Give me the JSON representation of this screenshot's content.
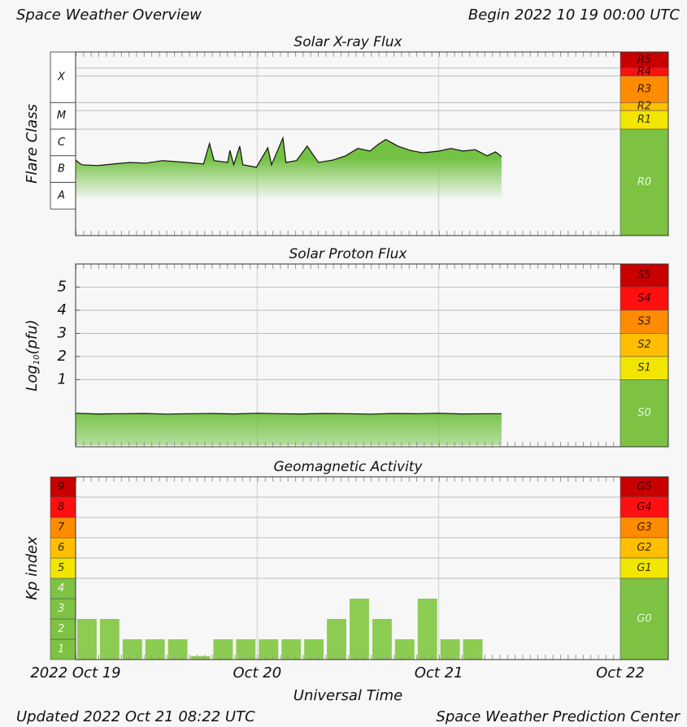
{
  "header": {
    "title": "Space Weather Overview",
    "begin": "Begin 2022 10 19 00:00 UTC"
  },
  "footer": {
    "updated": "Updated 2022 Oct 21 08:22 UTC",
    "source": "Space Weather Prediction Center"
  },
  "chart_data": [
    {
      "type": "line",
      "title": "Solar X-ray Flux",
      "ylabel": [
        "Flare Class"
      ],
      "ylog": true,
      "ylim": [
        1e-09,
        0.008
      ],
      "xlim": [
        0,
        72
      ],
      "xticks": [
        0,
        24,
        48,
        72
      ],
      "x": [
        0,
        0.8,
        2.9,
        5.0,
        7.2,
        9.3,
        11.5,
        14.7,
        16.9,
        17.7,
        18.3,
        20.1,
        20.4,
        20.9,
        21.7,
        22.1,
        23.9,
        25.4,
        25.9,
        27.4,
        27.8,
        29.2,
        30.6,
        32.1,
        34.0,
        35.7,
        37.3,
        38.9,
        40.0,
        41.0,
        42.6,
        44.2,
        45.9,
        48.0,
        49.6,
        51.2,
        52.8,
        54.4,
        55.5,
        56.3
      ],
      "values": [
        6.9e-07,
        4.6e-07,
        4.3e-07,
        4.9e-07,
        5.6e-07,
        5.3e-07,
        6.6e-07,
        5.6e-07,
        4.9e-07,
        2.9e-06,
        6.6e-07,
        5.6e-07,
        1.6e-06,
        4.6e-07,
        2.3e-06,
        4.6e-07,
        3.7e-07,
        2e-06,
        4.6e-07,
        4.7e-06,
        5.6e-07,
        6.6e-07,
        2.3e-06,
        5.6e-07,
        6.9e-07,
        1e-06,
        1.9e-06,
        1.5e-06,
        2.7e-06,
        4.1e-06,
        2.3e-06,
        1.6e-06,
        1.3e-06,
        1.5e-06,
        1.9e-06,
        1.5e-06,
        1.7e-06,
        1e-06,
        1.4e-06,
        9.3e-07
      ],
      "color": "#111111",
      "fill_color": "#6cbf3a",
      "classes": [
        {
          "label": "X",
          "from": 0.0001,
          "to": 0.008
        },
        {
          "label": "M",
          "from": 1e-05,
          "to": 0.0001
        },
        {
          "label": "C",
          "from": 1e-06,
          "to": 1e-05
        },
        {
          "label": "B",
          "from": 1e-07,
          "to": 1e-06
        },
        {
          "label": "A",
          "from": 1e-08,
          "to": 1e-07
        }
      ],
      "scale": [
        {
          "label": "R5",
          "from": 0.002,
          "to": 0.008,
          "color": "#c80000",
          "text_color": "#3a0000"
        },
        {
          "label": "R4",
          "from": 0.001,
          "to": 0.002,
          "color": "#ff1010",
          "text_color": "#3a0000"
        },
        {
          "label": "R3",
          "from": 0.0001,
          "to": 0.001,
          "color": "#ff8c00",
          "text_color": "#3a1a00"
        },
        {
          "label": "R2",
          "from": 5e-05,
          "to": 0.0001,
          "color": "#ffbf00",
          "text_color": "#3a2a00"
        },
        {
          "label": "R1",
          "from": 1e-05,
          "to": 5e-05,
          "color": "#f2e600",
          "text_color": "#333300"
        },
        {
          "label": "R0",
          "from": 1e-09,
          "to": 1e-05,
          "color": "#7dc242",
          "text_color": "#e6f5dc"
        }
      ]
    },
    {
      "type": "line",
      "title": "Solar Proton Flux",
      "ylabel": [
        "Log",
        "10",
        "(pfu)"
      ],
      "ylim": [
        -1.9,
        6
      ],
      "yticks": [
        1,
        2,
        3,
        4,
        5
      ],
      "xlim": [
        0,
        72
      ],
      "xticks": [
        0,
        24,
        48,
        72
      ],
      "x": [
        0,
        3,
        6,
        9,
        12,
        15,
        18,
        21,
        24,
        27,
        30,
        33,
        36,
        39,
        42,
        45,
        48,
        51,
        54,
        56.3
      ],
      "values": [
        -0.45,
        -0.48,
        -0.47,
        -0.46,
        -0.49,
        -0.47,
        -0.46,
        -0.48,
        -0.45,
        -0.47,
        -0.48,
        -0.46,
        -0.47,
        -0.49,
        -0.46,
        -0.47,
        -0.45,
        -0.48,
        -0.47,
        -0.47
      ],
      "color": "#111111",
      "fill_color": "#6cbf3a",
      "scale": [
        {
          "label": "S5",
          "from": 5,
          "to": 6,
          "color": "#c80000",
          "text_color": "#3a0000"
        },
        {
          "label": "S4",
          "from": 4,
          "to": 5,
          "color": "#ff1010",
          "text_color": "#3a0000"
        },
        {
          "label": "S3",
          "from": 3,
          "to": 4,
          "color": "#ff8c00",
          "text_color": "#3a1a00"
        },
        {
          "label": "S2",
          "from": 2,
          "to": 3,
          "color": "#ffbf00",
          "text_color": "#3a2a00"
        },
        {
          "label": "S1",
          "from": 1,
          "to": 2,
          "color": "#f2e600",
          "text_color": "#333300"
        },
        {
          "label": "S0",
          "from": -1.9,
          "to": 1,
          "color": "#7dc242",
          "text_color": "#e6f5dc"
        }
      ]
    },
    {
      "type": "bar",
      "title": "Geomagnetic Activity",
      "ylabel": [
        "Kp index"
      ],
      "xlabel": "Universal Time",
      "ylim": [
        0,
        9
      ],
      "xlim": [
        0,
        72
      ],
      "xticks": [
        {
          "value": 0,
          "label": "2022 Oct 19"
        },
        {
          "value": 24,
          "label": "Oct 20"
        },
        {
          "value": 48,
          "label": "Oct 21"
        },
        {
          "value": 72,
          "label": "Oct 22"
        }
      ],
      "x": [
        0,
        3,
        6,
        9,
        12,
        15,
        18,
        21,
        24,
        27,
        30,
        33,
        36,
        39,
        42,
        45,
        48,
        51
      ],
      "values": [
        2,
        2,
        1,
        1,
        1,
        0.17,
        1,
        1,
        1,
        1,
        1,
        2,
        3,
        2,
        1,
        3,
        1,
        1
      ],
      "color": "#8ccc52",
      "levels": [
        1,
        2,
        3,
        4,
        5,
        6,
        7,
        8,
        9
      ],
      "level_colors": [
        "#7dc242",
        "#7dc242",
        "#7dc242",
        "#7dc242",
        "#f2e600",
        "#ffbf00",
        "#ff8c00",
        "#ff1010",
        "#c80000"
      ],
      "level_text_colors": [
        "#f0faea",
        "#f0faea",
        "#f0faea",
        "#f0faea",
        "#333300",
        "#3a2a00",
        "#3a1a00",
        "#3a0000",
        "#3a0000"
      ],
      "scale": [
        {
          "label": "G5",
          "from": 8,
          "to": 9,
          "color": "#c80000",
          "text_color": "#3a0000"
        },
        {
          "label": "G4",
          "from": 7,
          "to": 8,
          "color": "#ff1010",
          "text_color": "#3a0000"
        },
        {
          "label": "G3",
          "from": 6,
          "to": 7,
          "color": "#ff8c00",
          "text_color": "#3a1a00"
        },
        {
          "label": "G2",
          "from": 5,
          "to": 6,
          "color": "#ffbf00",
          "text_color": "#3a2a00"
        },
        {
          "label": "G1",
          "from": 4,
          "to": 5,
          "color": "#f2e600",
          "text_color": "#333300"
        },
        {
          "label": "G0",
          "from": 0,
          "to": 4,
          "color": "#7dc242",
          "text_color": "#e6f5dc"
        }
      ]
    }
  ]
}
